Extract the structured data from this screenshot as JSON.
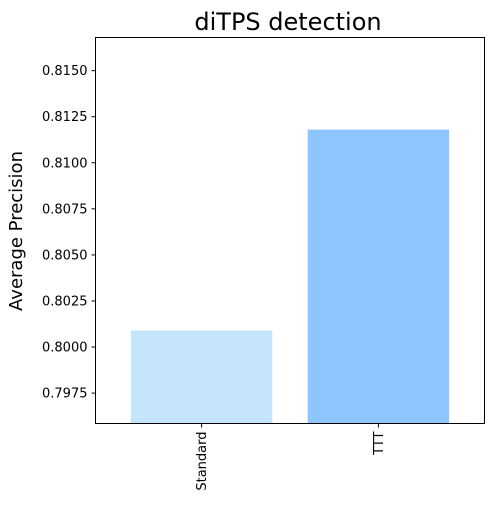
{
  "chart_data": {
    "type": "bar",
    "title": "diTPS detection",
    "xlabel": "",
    "ylabel": "Average Precision",
    "categories": [
      "Standard",
      "TTT"
    ],
    "values": [
      0.8009,
      0.8118
    ],
    "colors": [
      "#c4e5fb",
      "#8fc5fe"
    ],
    "ylim": [
      0.79585,
      0.8168
    ],
    "yticks": [
      0.7975,
      0.8,
      0.8025,
      0.805,
      0.8075,
      0.81,
      0.8125,
      0.815
    ],
    "ytick_labels": [
      "0.7975",
      "0.8000",
      "0.8025",
      "0.8050",
      "0.8075",
      "0.8100",
      "0.8125",
      "0.8150"
    ],
    "xtick_rotation": 90,
    "grid": false,
    "legend": "none"
  }
}
